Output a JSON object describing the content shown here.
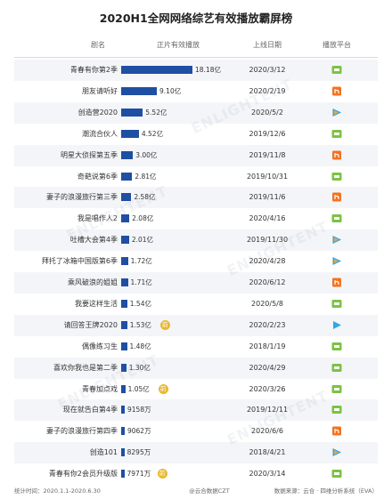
{
  "title": "2020H1全网网络综艺有效播放霸屏榜",
  "headers": {
    "name": "剧名",
    "plays": "正片有效播放",
    "date": "上线日期",
    "platform": "播放平台"
  },
  "badge_label": "前",
  "colors": {
    "bar": "#1f4fa3",
    "badge": "#e9b830",
    "iqiyi": "#7cc243",
    "youku": "#2fa8e8",
    "tencent": "#f2a33c",
    "mango": "#f5721f"
  },
  "chart_data": {
    "type": "bar",
    "unit_note": "values in 亿 (100 million)",
    "xlim": [
      0,
      18.18
    ],
    "rows": [
      {
        "name": "青春有你第2季",
        "value": 18.18,
        "label": "18.18亿",
        "badge": false,
        "date": "2020/3/12",
        "platform": "iqiyi-icon"
      },
      {
        "name": "朋友请听好",
        "value": 9.1,
        "label": "9.10亿",
        "badge": false,
        "date": "2020/2/19",
        "platform": "mango-icon"
      },
      {
        "name": "创造营2020",
        "value": 5.52,
        "label": "5.52亿",
        "badge": false,
        "date": "2020/5/2",
        "platform": "tencent-icon"
      },
      {
        "name": "潮流合伙人",
        "value": 4.52,
        "label": "4.52亿",
        "badge": false,
        "date": "2019/12/6",
        "platform": "iqiyi-icon"
      },
      {
        "name": "明星大侦探第五季",
        "value": 3.0,
        "label": "3.00亿",
        "badge": false,
        "date": "2019/11/8",
        "platform": "mango-icon"
      },
      {
        "name": "奇葩说第6季",
        "value": 2.81,
        "label": "2.81亿",
        "badge": false,
        "date": "2019/10/31",
        "platform": "iqiyi-icon"
      },
      {
        "name": "妻子的浪漫旅行第三季",
        "value": 2.58,
        "label": "2.58亿",
        "badge": false,
        "date": "2019/11/6",
        "platform": "mango-icon"
      },
      {
        "name": "我是唱作人2",
        "value": 2.08,
        "label": "2.08亿",
        "badge": false,
        "date": "2020/4/16",
        "platform": "iqiyi-icon"
      },
      {
        "name": "吐槽大会第4季",
        "value": 2.01,
        "label": "2.01亿",
        "badge": false,
        "date": "2019/11/30",
        "platform": "tencent-icon"
      },
      {
        "name": "拜托了冰箱中国版第6季",
        "value": 1.72,
        "label": "1.72亿",
        "badge": false,
        "date": "2020/4/28",
        "platform": "tencent-icon"
      },
      {
        "name": "乘风破浪的姐姐",
        "value": 1.71,
        "label": "1.71亿",
        "badge": false,
        "date": "2020/6/12",
        "platform": "mango-icon"
      },
      {
        "name": "我要这样生活",
        "value": 1.54,
        "label": "1.54亿",
        "badge": false,
        "date": "2020/5/8",
        "platform": "iqiyi-icon"
      },
      {
        "name": "请回答王牌2020",
        "value": 1.53,
        "label": "1.53亿",
        "badge": true,
        "date": "2020/2/23",
        "platform": "youku-icon"
      },
      {
        "name": "偶像练习生",
        "value": 1.48,
        "label": "1.48亿",
        "badge": false,
        "date": "2018/1/19",
        "platform": "iqiyi-icon"
      },
      {
        "name": "喜欢你我也是第二季",
        "value": 1.3,
        "label": "1.30亿",
        "badge": false,
        "date": "2020/4/29",
        "platform": "iqiyi-icon"
      },
      {
        "name": "青春加点戏",
        "value": 1.05,
        "label": "1.05亿",
        "badge": true,
        "date": "2020/3/26",
        "platform": "iqiyi-icon"
      },
      {
        "name": "现在就告白第4季",
        "value": 0.9158,
        "label": "9158万",
        "badge": false,
        "date": "2019/12/11",
        "platform": "iqiyi-icon"
      },
      {
        "name": "妻子的浪漫旅行第四季",
        "value": 0.9062,
        "label": "9062万",
        "badge": false,
        "date": "2020/6/6",
        "platform": "mango-icon"
      },
      {
        "name": "创造101",
        "value": 0.8295,
        "label": "8295万",
        "badge": false,
        "date": "2018/4/21",
        "platform": "tencent-icon"
      },
      {
        "name": "青春有你2会员升级版",
        "value": 0.7971,
        "label": "7971万",
        "badge": true,
        "date": "2020/3/14",
        "platform": "iqiyi-icon"
      }
    ]
  },
  "footer": {
    "period": "统计时间：2020.1.1-2020.6.30",
    "source": "数据来源：云合 · 四维分析系统（EVA）",
    "credit": "@云合数据CZT"
  }
}
